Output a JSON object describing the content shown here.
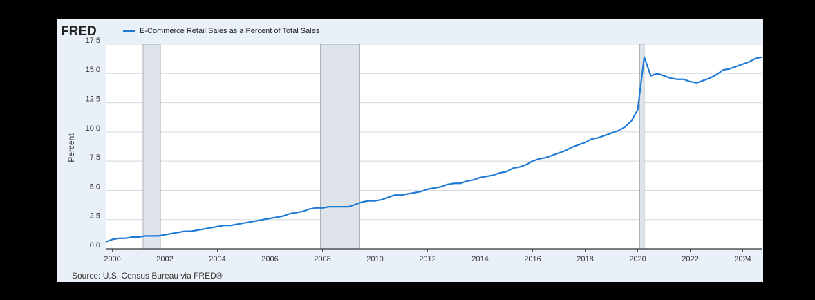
{
  "chart_data": {
    "type": "line",
    "logo": "FRED",
    "y_label": "Percent",
    "source": "Source: U.S. Census Bureau via FRED®",
    "x": [
      1999.75,
      2000,
      2000.25,
      2000.5,
      2000.75,
      2001,
      2001.25,
      2001.5,
      2001.75,
      2002,
      2002.25,
      2002.5,
      2002.75,
      2003,
      2003.25,
      2003.5,
      2003.75,
      2004,
      2004.25,
      2004.5,
      2004.75,
      2005,
      2005.25,
      2005.5,
      2005.75,
      2006,
      2006.25,
      2006.5,
      2006.75,
      2007,
      2007.25,
      2007.5,
      2007.75,
      2008,
      2008.25,
      2008.5,
      2008.75,
      2009,
      2009.25,
      2009.5,
      2009.75,
      2010,
      2010.25,
      2010.5,
      2010.75,
      2011,
      2011.25,
      2011.5,
      2011.75,
      2012,
      2012.25,
      2012.5,
      2012.75,
      2013,
      2013.25,
      2013.5,
      2013.75,
      2014,
      2014.25,
      2014.5,
      2014.75,
      2015,
      2015.25,
      2015.5,
      2015.75,
      2016,
      2016.25,
      2016.5,
      2016.75,
      2017,
      2017.25,
      2017.5,
      2017.75,
      2018,
      2018.25,
      2018.5,
      2018.75,
      2019,
      2019.25,
      2019.5,
      2019.75,
      2020,
      2020.25,
      2020.5,
      2020.75,
      2021,
      2021.25,
      2021.5,
      2021.75,
      2022,
      2022.25,
      2022.5,
      2022.75,
      2023,
      2023.25,
      2023.5,
      2023.75,
      2024,
      2024.25,
      2024.5,
      2024.75
    ],
    "series": [
      {
        "name": "E-Commerce Retail Sales as a Percent of Total Sales",
        "color": "#1f7ad6",
        "values": [
          0.6,
          0.8,
          0.9,
          0.9,
          1.0,
          1.0,
          1.1,
          1.1,
          1.1,
          1.2,
          1.3,
          1.4,
          1.5,
          1.5,
          1.6,
          1.7,
          1.8,
          1.9,
          2.0,
          2.0,
          2.1,
          2.2,
          2.3,
          2.4,
          2.5,
          2.6,
          2.7,
          2.8,
          3.0,
          3.1,
          3.2,
          3.4,
          3.5,
          3.5,
          3.6,
          3.6,
          3.6,
          3.6,
          3.8,
          4.0,
          4.1,
          4.1,
          4.2,
          4.4,
          4.6,
          4.6,
          4.7,
          4.8,
          4.9,
          5.1,
          5.2,
          5.3,
          5.5,
          5.6,
          5.6,
          5.8,
          5.9,
          6.1,
          6.2,
          6.3,
          6.5,
          6.6,
          6.9,
          7.0,
          7.2,
          7.5,
          7.7,
          7.8,
          8.0,
          8.2,
          8.4,
          8.7,
          8.9,
          9.1,
          9.4,
          9.5,
          9.7,
          9.9,
          10.1,
          10.4,
          10.9,
          11.9,
          16.4,
          14.8,
          15.0,
          14.8,
          14.6,
          14.5,
          14.5,
          14.3,
          14.2,
          14.4,
          14.6,
          14.9,
          15.3,
          15.4,
          15.6,
          15.8,
          16.0,
          16.3,
          16.4
        ]
      }
    ],
    "recessions": [
      [
        2001.17,
        2001.83
      ],
      [
        2007.92,
        2009.42
      ],
      [
        2020.08,
        2020.25
      ]
    ],
    "recession_color": "#dfe4ea",
    "xlim": [
      1999.75,
      2024.75
    ],
    "xticks": [
      2000,
      2002,
      2004,
      2006,
      2008,
      2010,
      2012,
      2014,
      2016,
      2018,
      2020,
      2022,
      2024
    ],
    "ylim": [
      0,
      17.5
    ],
    "yticks": [
      {
        "value": 0,
        "label": "0.0"
      },
      {
        "value": 2.5,
        "label": "2.5"
      },
      {
        "value": 5,
        "label": "5.0"
      },
      {
        "value": 7.5,
        "label": "7.5"
      },
      {
        "value": 10,
        "label": "10.0"
      },
      {
        "value": 12.5,
        "label": "12.5"
      },
      {
        "value": 15,
        "label": "15.0"
      },
      {
        "value": 17.5,
        "label": "17.5"
      }
    ],
    "grid": true
  }
}
